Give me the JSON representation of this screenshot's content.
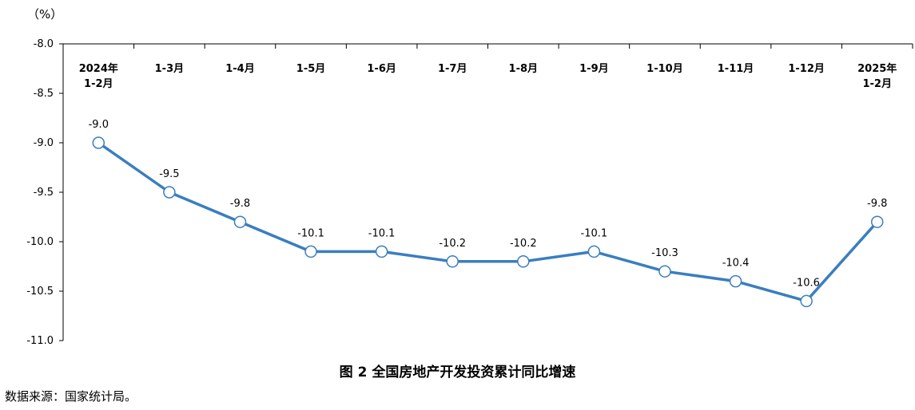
{
  "unit_label": "（%）",
  "title": "图 2 全国房地产开发投资累计同比增速",
  "source": "数据来源：国家统计局。",
  "chart_data": {
    "type": "line",
    "categories": [
      [
        "2024年",
        "1-2月"
      ],
      [
        "1-3月"
      ],
      [
        "1-4月"
      ],
      [
        "1-5月"
      ],
      [
        "1-6月"
      ],
      [
        "1-7月"
      ],
      [
        "1-8月"
      ],
      [
        "1-9月"
      ],
      [
        "1-10月"
      ],
      [
        "1-11月"
      ],
      [
        "1-12月"
      ],
      [
        "2025年",
        "1-2月"
      ]
    ],
    "series": [
      {
        "values": [
          -9.0,
          -9.5,
          -9.8,
          -10.1,
          -10.1,
          -10.2,
          -10.2,
          -10.1,
          -10.3,
          -10.4,
          -10.6,
          -9.8
        ],
        "labels": [
          "-9.0",
          "-9.5",
          "-9.8",
          "-10.1",
          "-10.1",
          "-10.2",
          "-10.2",
          "-10.1",
          "-10.3",
          "-10.4",
          "-10.6",
          "-9.8"
        ]
      }
    ],
    "y_ticks": [
      "-8.0",
      "-8.5",
      "-9.0",
      "-9.5",
      "-10.0",
      "-10.5",
      "-11.0"
    ],
    "ylim": [
      -11.0,
      -8.0
    ],
    "line_color": "#3a7ebf",
    "marker_fill": "#ffffff",
    "axis_color": "#000000",
    "x_axis_position": "top",
    "grid": false
  }
}
